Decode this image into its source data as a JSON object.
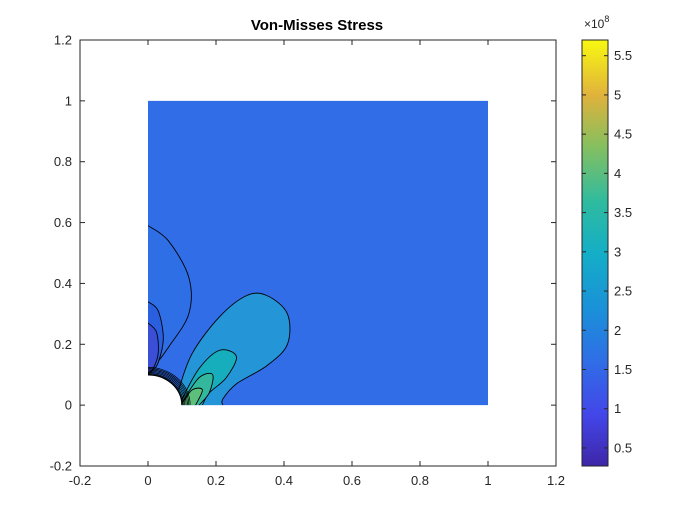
{
  "chart_data": {
    "type": "contour",
    "title": "Von-Misses Stress",
    "xlabel": "",
    "ylabel": "",
    "xlim": [
      -0.2,
      1.2
    ],
    "ylim": [
      -0.2,
      1.2
    ],
    "x_ticks": [
      "-0.2",
      "0",
      "0.2",
      "0.4",
      "0.6",
      "0.8",
      "1",
      "1.2"
    ],
    "y_ticks": [
      "-0.2",
      "0",
      "0.2",
      "0.4",
      "0.6",
      "0.8",
      "1",
      "1.2"
    ],
    "domain": {
      "shape": "unit square with quarter-circle hole at origin",
      "x_range": [
        0,
        1
      ],
      "y_range": [
        0,
        1
      ],
      "hole_radius": 0.1
    },
    "background_stress": 160000000.0,
    "colorbar": {
      "colormap": "parula",
      "range": [
        27000000.0,
        570000000.0
      ],
      "ticks": [
        "0.5",
        "1",
        "1.5",
        "2",
        "2.5",
        "3",
        "3.5",
        "4",
        "4.5",
        "5",
        "5.5"
      ],
      "multiplier_base": "×10",
      "multiplier_exp": "8"
    },
    "contour_regions": [
      {
        "name": "upper-lobe-outer",
        "level": 130000000.0,
        "color": "#2f6fe6",
        "outline": [
          [
            0,
            0.59
          ],
          [
            0.06,
            0.54
          ],
          [
            0.12,
            0.42
          ],
          [
            0.12,
            0.3
          ],
          [
            0.06,
            0.19
          ],
          [
            0.02,
            0.13
          ],
          [
            0,
            0.11
          ]
        ]
      },
      {
        "name": "upper-lobe-inner",
        "level": 100000000.0,
        "color": "#2a5fe0",
        "outline": [
          [
            0,
            0.34
          ],
          [
            0.03,
            0.31
          ],
          [
            0.045,
            0.22
          ],
          [
            0.03,
            0.14
          ],
          [
            0.01,
            0.11
          ],
          [
            0,
            0.105
          ]
        ]
      },
      {
        "name": "upper-lobe-core",
        "level": 70000000.0,
        "color": "#3b4fd6",
        "outline": [
          [
            0,
            0.27
          ],
          [
            0.025,
            0.24
          ],
          [
            0.03,
            0.17
          ],
          [
            0.015,
            0.12
          ],
          [
            0,
            0.105
          ]
        ]
      },
      {
        "name": "right-lobe-outer",
        "level": 200000000.0,
        "color": "#2496d8",
        "outline": [
          [
            0.09,
            0.05
          ],
          [
            0.13,
            0.17
          ],
          [
            0.21,
            0.29
          ],
          [
            0.29,
            0.36
          ],
          [
            0.35,
            0.36
          ],
          [
            0.41,
            0.3
          ],
          [
            0.41,
            0.2
          ],
          [
            0.35,
            0.13
          ],
          [
            0.26,
            0.07
          ],
          [
            0.22,
            0.02
          ],
          [
            0.22,
            0
          ]
        ]
      },
      {
        "name": "right-lobe-mid",
        "level": 250000000.0,
        "color": "#16aebd",
        "outline": [
          [
            0.1,
            0.02
          ],
          [
            0.15,
            0.12
          ],
          [
            0.21,
            0.18
          ],
          [
            0.26,
            0.16
          ],
          [
            0.23,
            0.09
          ],
          [
            0.18,
            0.04
          ],
          [
            0.16,
            0
          ]
        ]
      },
      {
        "name": "right-lobe-inner",
        "level": 300000000.0,
        "color": "#33b89e",
        "outline": [
          [
            0.1,
            0.01
          ],
          [
            0.15,
            0.09
          ],
          [
            0.19,
            0.1
          ],
          [
            0.18,
            0.04
          ],
          [
            0.15,
            0
          ]
        ]
      },
      {
        "name": "right-lobe-core",
        "level": 350000000.0,
        "color": "#5cc07c",
        "outline": [
          [
            0.1,
            0.005
          ],
          [
            0.13,
            0.05
          ],
          [
            0.16,
            0.05
          ],
          [
            0.14,
            0
          ]
        ]
      }
    ]
  }
}
